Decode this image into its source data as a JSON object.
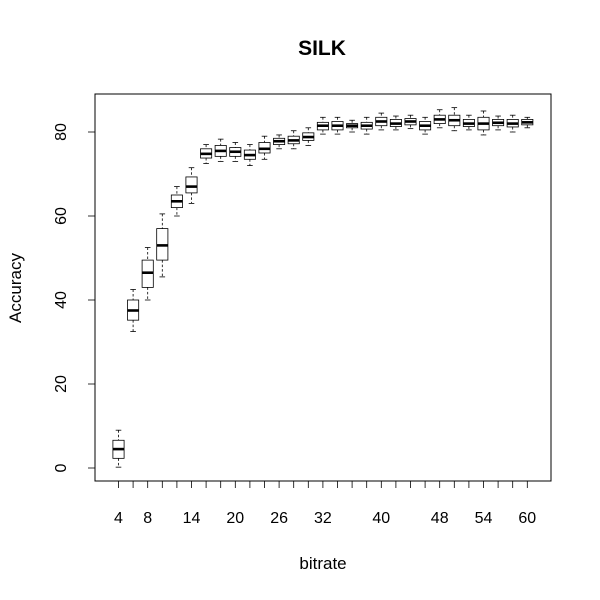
{
  "chart_data": {
    "type": "boxplot",
    "title": "SILK",
    "xlabel": "bitrate",
    "ylabel": "Accuracy",
    "ylim": [
      -3,
      89
    ],
    "y_ticks": [
      0,
      20,
      40,
      60,
      80
    ],
    "x_tick_labels_shown": [
      "4",
      "8",
      "14",
      "20",
      "26",
      "32",
      "40",
      "48",
      "54",
      "60"
    ],
    "grid": false,
    "boxes": [
      {
        "x": 4,
        "min": 0.2,
        "q1": 2.3,
        "median": 4.5,
        "q3": 6.6,
        "max": 9.0
      },
      {
        "x": 6,
        "min": 32.5,
        "q1": 35.2,
        "median": 37.5,
        "q3": 40.0,
        "max": 42.5
      },
      {
        "x": 8,
        "min": 40.0,
        "q1": 43.0,
        "median": 46.5,
        "q3": 49.5,
        "max": 52.5
      },
      {
        "x": 10,
        "min": 45.5,
        "q1": 49.5,
        "median": 53.0,
        "q3": 57.0,
        "max": 60.5
      },
      {
        "x": 12,
        "min": 60.0,
        "q1": 62.0,
        "median": 63.5,
        "q3": 65.0,
        "max": 67.0
      },
      {
        "x": 14,
        "min": 63.0,
        "q1": 65.5,
        "median": 67.0,
        "q3": 69.3,
        "max": 71.5
      },
      {
        "x": 16,
        "min": 72.5,
        "q1": 73.8,
        "median": 74.8,
        "q3": 76.0,
        "max": 77.0
      },
      {
        "x": 18,
        "min": 73.0,
        "q1": 74.2,
        "median": 75.5,
        "q3": 76.8,
        "max": 78.3
      },
      {
        "x": 20,
        "min": 73.0,
        "q1": 74.2,
        "median": 75.3,
        "q3": 76.3,
        "max": 77.5
      },
      {
        "x": 22,
        "min": 72.0,
        "q1": 73.5,
        "median": 74.5,
        "q3": 75.7,
        "max": 77.0
      },
      {
        "x": 24,
        "min": 73.5,
        "q1": 75.0,
        "median": 76.0,
        "q3": 77.5,
        "max": 79.0
      },
      {
        "x": 26,
        "min": 76.0,
        "q1": 77.0,
        "median": 77.8,
        "q3": 78.5,
        "max": 79.3
      },
      {
        "x": 28,
        "min": 76.0,
        "q1": 77.2,
        "median": 78.0,
        "q3": 79.0,
        "max": 80.3
      },
      {
        "x": 30,
        "min": 76.8,
        "q1": 78.0,
        "median": 78.8,
        "q3": 79.8,
        "max": 81.0
      },
      {
        "x": 32,
        "min": 79.5,
        "q1": 80.5,
        "median": 81.5,
        "q3": 82.3,
        "max": 83.5
      },
      {
        "x": 34,
        "min": 79.5,
        "q1": 80.5,
        "median": 81.5,
        "q3": 82.5,
        "max": 83.5
      },
      {
        "x": 36,
        "min": 80.0,
        "q1": 81.0,
        "median": 81.5,
        "q3": 82.0,
        "max": 82.8
      },
      {
        "x": 38,
        "min": 79.5,
        "q1": 80.7,
        "median": 81.5,
        "q3": 82.3,
        "max": 83.5
      },
      {
        "x": 40,
        "min": 80.5,
        "q1": 81.5,
        "median": 82.5,
        "q3": 83.5,
        "max": 84.5
      },
      {
        "x": 42,
        "min": 80.5,
        "q1": 81.3,
        "median": 82.0,
        "q3": 83.0,
        "max": 83.8
      },
      {
        "x": 44,
        "min": 80.8,
        "q1": 81.7,
        "median": 82.5,
        "q3": 83.2,
        "max": 84.0
      },
      {
        "x": 46,
        "min": 79.5,
        "q1": 80.5,
        "median": 81.5,
        "q3": 82.5,
        "max": 83.5
      },
      {
        "x": 48,
        "min": 81.0,
        "q1": 82.0,
        "median": 83.0,
        "q3": 84.0,
        "max": 85.3
      },
      {
        "x": 50,
        "min": 80.3,
        "q1": 81.5,
        "median": 82.8,
        "q3": 84.0,
        "max": 85.8
      },
      {
        "x": 52,
        "min": 80.5,
        "q1": 81.3,
        "median": 82.0,
        "q3": 83.0,
        "max": 84.0
      },
      {
        "x": 54,
        "min": 79.3,
        "q1": 80.5,
        "median": 82.0,
        "q3": 83.5,
        "max": 85.0
      },
      {
        "x": 56,
        "min": 80.5,
        "q1": 81.5,
        "median": 82.2,
        "q3": 83.0,
        "max": 83.8
      },
      {
        "x": 58,
        "min": 80.0,
        "q1": 81.2,
        "median": 82.0,
        "q3": 83.0,
        "max": 84.0
      },
      {
        "x": 60,
        "min": 81.0,
        "q1": 81.7,
        "median": 82.3,
        "q3": 83.0,
        "max": 83.5
      }
    ]
  }
}
